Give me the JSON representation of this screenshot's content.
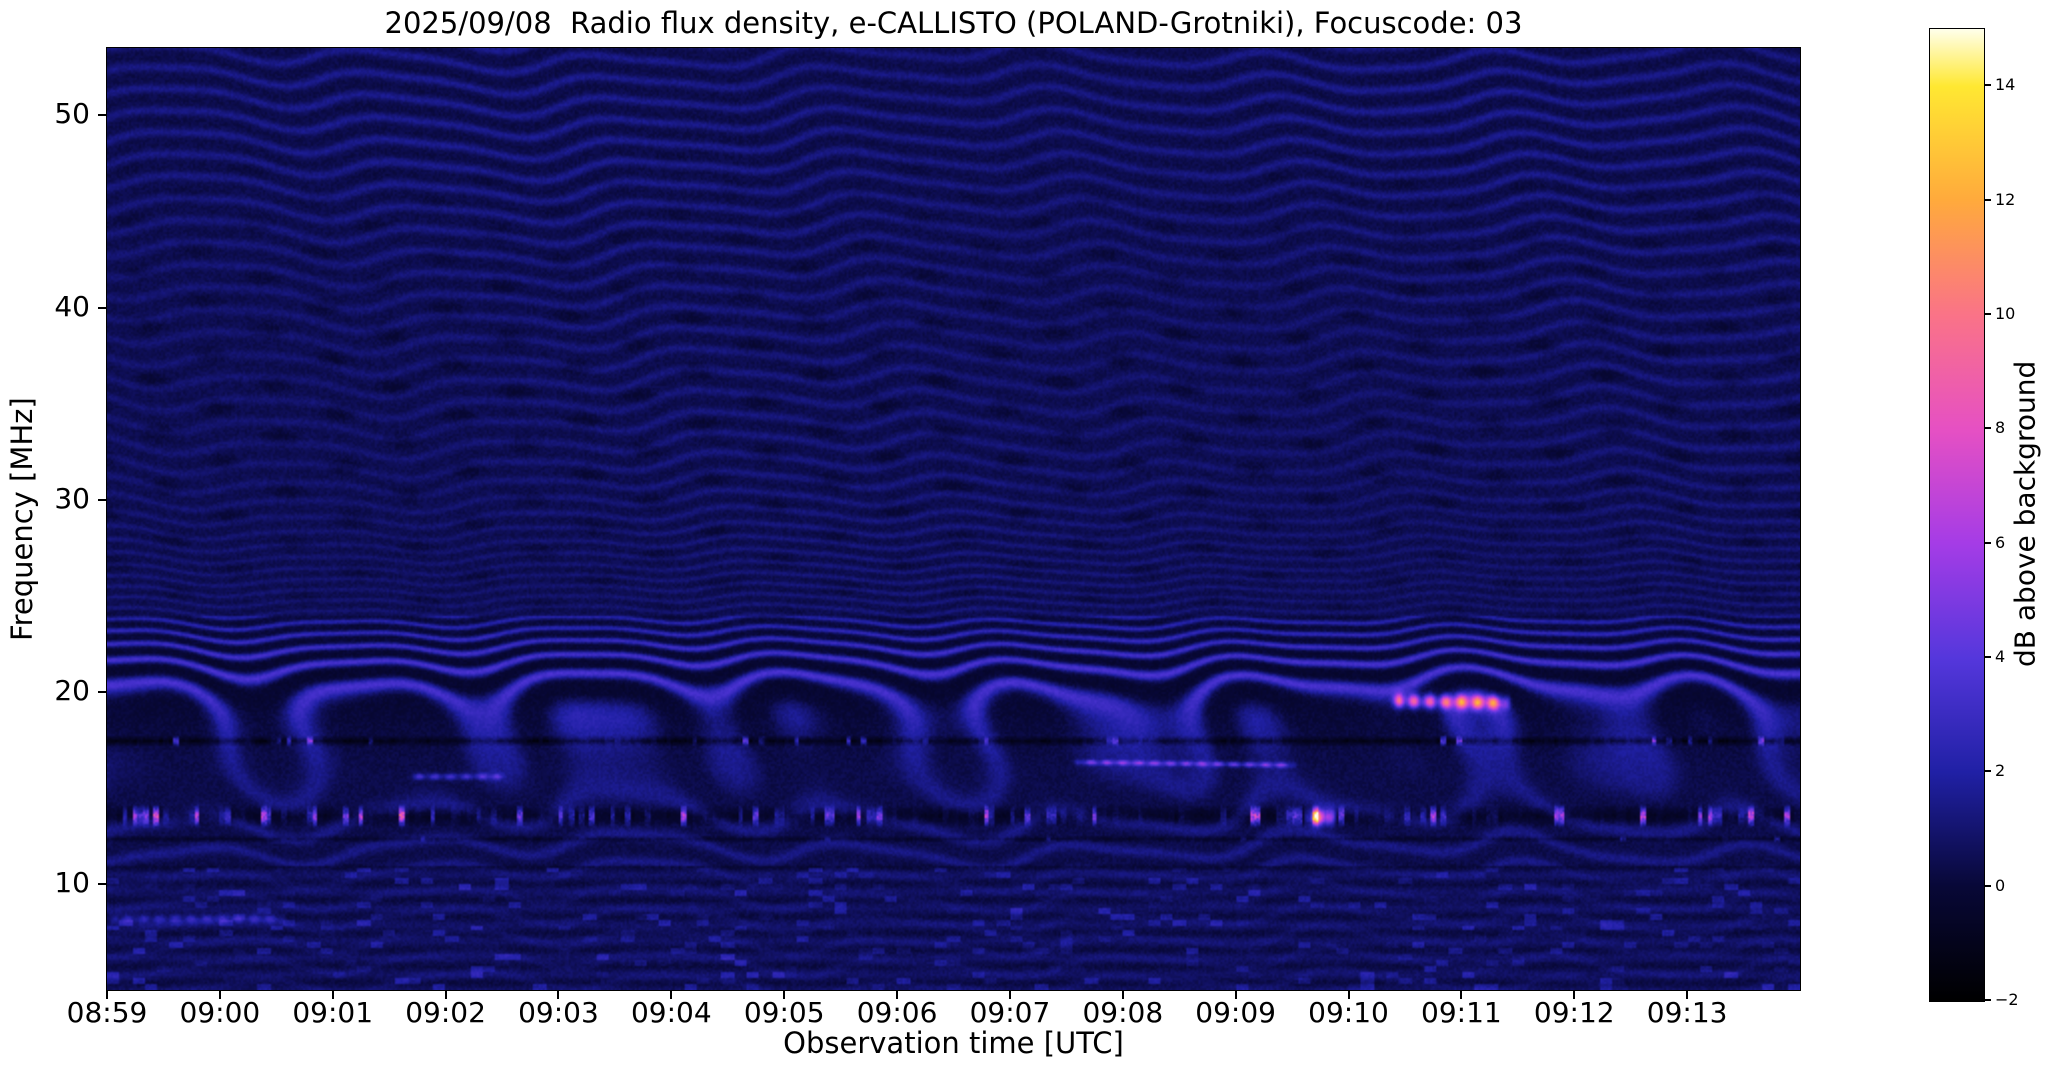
{
  "figure": {
    "instrument": "e-CALLISTO",
    "station": "POLAND-Grotniki",
    "date": "2025/09/08",
    "focuscode": "03"
  },
  "chart_data": {
    "type": "heatmap",
    "title": "2025/09/08  Radio flux density, e-CALLISTO (POLAND-Grotniki), Focuscode: 03",
    "xlabel": "Observation time [UTC]",
    "ylabel": "Frequency [MHz]",
    "colorbar_label": "dB above background",
    "x_start_time_utc": "08:59",
    "x_end_time_utc": "09:14",
    "x_tick_labels": [
      "08:59",
      "09:00",
      "09:01",
      "09:02",
      "09:03",
      "09:04",
      "09:05",
      "09:06",
      "09:07",
      "09:08",
      "09:09",
      "09:10",
      "09:11",
      "09:12",
      "09:13"
    ],
    "x_tick_minutes": [
      0,
      1,
      2,
      3,
      4,
      5,
      6,
      7,
      8,
      9,
      10,
      11,
      12,
      13,
      14
    ],
    "x_range_minutes": [
      0,
      15
    ],
    "y_tick_labels": [
      "10",
      "20",
      "30",
      "40",
      "50"
    ],
    "y_tick_values": [
      10,
      20,
      30,
      40,
      50
    ],
    "freq_range_mhz": [
      4.5,
      53.5
    ],
    "value_range_db": [
      -2,
      15
    ],
    "colorbar_tick_values": [
      -2,
      0,
      2,
      4,
      6,
      8,
      10,
      12,
      14
    ],
    "colorbar_tick_labels": [
      "−2",
      "0",
      "2",
      "4",
      "6",
      "8",
      "10",
      "12",
      "14"
    ],
    "background_level_db": 0.6,
    "grid": false,
    "legend": "none",
    "colormap_stops": [
      {
        "u": 0.0,
        "rgb": [
          0,
          0,
          0
        ]
      },
      {
        "u": 0.118,
        "rgb": [
          8,
          8,
          55
        ]
      },
      {
        "u": 0.235,
        "rgb": [
          32,
          32,
          165
        ]
      },
      {
        "u": 0.353,
        "rgb": [
          85,
          55,
          220
        ]
      },
      {
        "u": 0.471,
        "rgb": [
          165,
          60,
          230
        ]
      },
      {
        "u": 0.588,
        "rgb": [
          230,
          80,
          195
        ]
      },
      {
        "u": 0.706,
        "rgb": [
          250,
          115,
          135
        ]
      },
      {
        "u": 0.824,
        "rgb": [
          255,
          170,
          60
        ]
      },
      {
        "u": 0.941,
        "rgb": [
          255,
          232,
          50
        ]
      },
      {
        "u": 1.0,
        "rgb": [
          255,
          255,
          235
        ]
      }
    ],
    "rfi_rows": [
      {
        "id": 1,
        "freq_mhz": 17.45,
        "half_width_mhz": 0.28,
        "base_offset_db": -1.6,
        "speckle_prob": 0.17,
        "speckle_max_db": 7
      },
      {
        "id": 2,
        "freq_mhz": 13.55,
        "half_width_mhz": 0.6,
        "base_offset_db": -1.2,
        "speckle_prob": 0.38,
        "speckle_max_db": 11
      },
      {
        "id": 3,
        "freq_mhz": 12.35,
        "half_width_mhz": 0.18,
        "base_offset_db": -0.9,
        "speckle_prob": 0.06,
        "speckle_max_db": 3
      },
      {
        "id": 4,
        "freq_mhz": 10.9,
        "half_width_mhz": 0.14,
        "base_offset_db": -0.6,
        "speckle_prob": 0.0,
        "speckle_max_db": 0
      }
    ],
    "bursts": [
      {
        "t_start_min": 11.35,
        "t_end_min": 12.45,
        "freq_mhz": 19.55,
        "half_width_mhz": 0.35,
        "peak_db": 9.5,
        "drift_mhz_per_min": -0.12,
        "label": "bright pink-orange drifting streak near 19.5 MHz, 09:10:20-09:11:25"
      },
      {
        "t_start_min": 10.6,
        "t_end_min": 10.9,
        "freq_mhz": 13.5,
        "half_width_mhz": 0.4,
        "peak_db": 13.0,
        "drift_mhz_per_min": 0,
        "label": "intense yellow-orange RFI flash near 13.5 MHz, ~09:09:40"
      },
      {
        "t_start_min": 8.55,
        "t_end_min": 10.55,
        "freq_mhz": 16.35,
        "half_width_mhz": 0.13,
        "peak_db": 4.5,
        "drift_mhz_per_min": -0.08,
        "label": "thin bright drifting line near 16 MHz, 09:07:30-09:09:30"
      },
      {
        "t_start_min": 2.65,
        "t_end_min": 3.55,
        "freq_mhz": 15.6,
        "half_width_mhz": 0.16,
        "peak_db": 3.2,
        "drift_mhz_per_min": 0,
        "label": "short blue streak near 15.6 MHz, ~09:01:40"
      },
      {
        "t_start_min": 0.0,
        "t_end_min": 1.6,
        "freq_mhz": 8.2,
        "half_width_mhz": 0.22,
        "peak_db": 2.4,
        "drift_mhz_per_min": 0,
        "label": "low-band streak near 8 MHz, 08:59-09:00:35"
      }
    ],
    "description": "Dynamic radio spectrum: dark-blue noise background (~0-1 dB) with wavy ionospheric interference fringes over the whole band, strongest between 18-23 MHz; dark RFI-notched rows with colored speckles near 17.5 and 13-14 MHz; mottled streaky band below 10 MHz."
  }
}
